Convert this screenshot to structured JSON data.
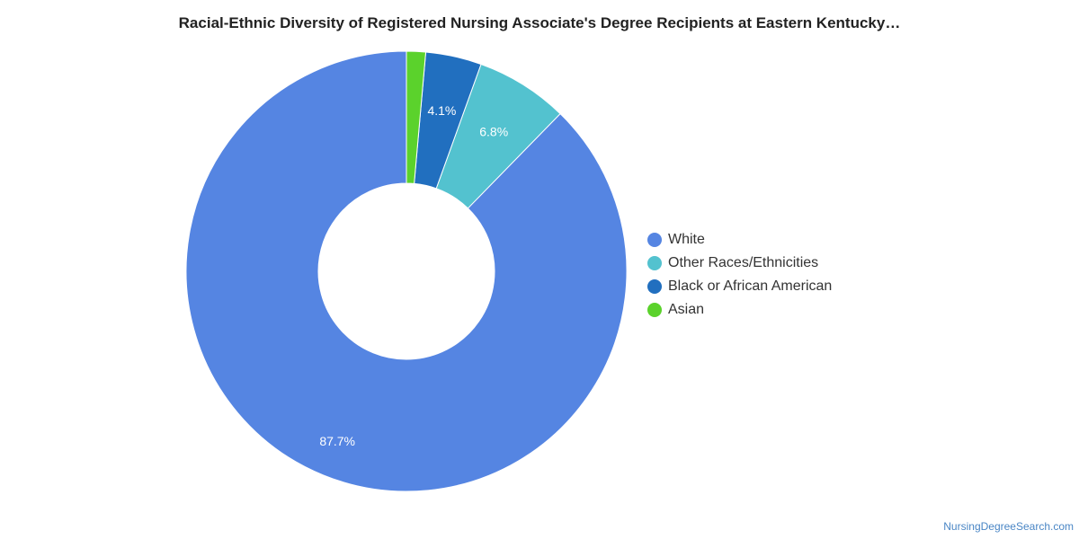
{
  "chart_data": {
    "type": "pie",
    "title": "Racial-Ethnic Diversity of Registered Nursing Associate's Degree Recipients at Eastern Kentucky…",
    "donut": true,
    "labels": [
      "White",
      "Other Races/Ethnicities",
      "Black or African American",
      "Asian"
    ],
    "values": [
      87.7,
      6.8,
      4.1,
      1.4
    ],
    "data_labels": [
      "87.7%",
      "6.8%",
      "4.1%",
      ""
    ],
    "colors": [
      "#5585e2",
      "#53c2cf",
      "#216fbf",
      "#5bd22c"
    ],
    "legend_position": "right"
  },
  "legend": [
    {
      "label": "White",
      "color": "#5585e2"
    },
    {
      "label": "Other Races/Ethnicities",
      "color": "#53c2cf"
    },
    {
      "label": "Black or African American",
      "color": "#216fbf"
    },
    {
      "label": "Asian",
      "color": "#5bd22c"
    }
  ],
  "credit": "NursingDegreeSearch.com"
}
